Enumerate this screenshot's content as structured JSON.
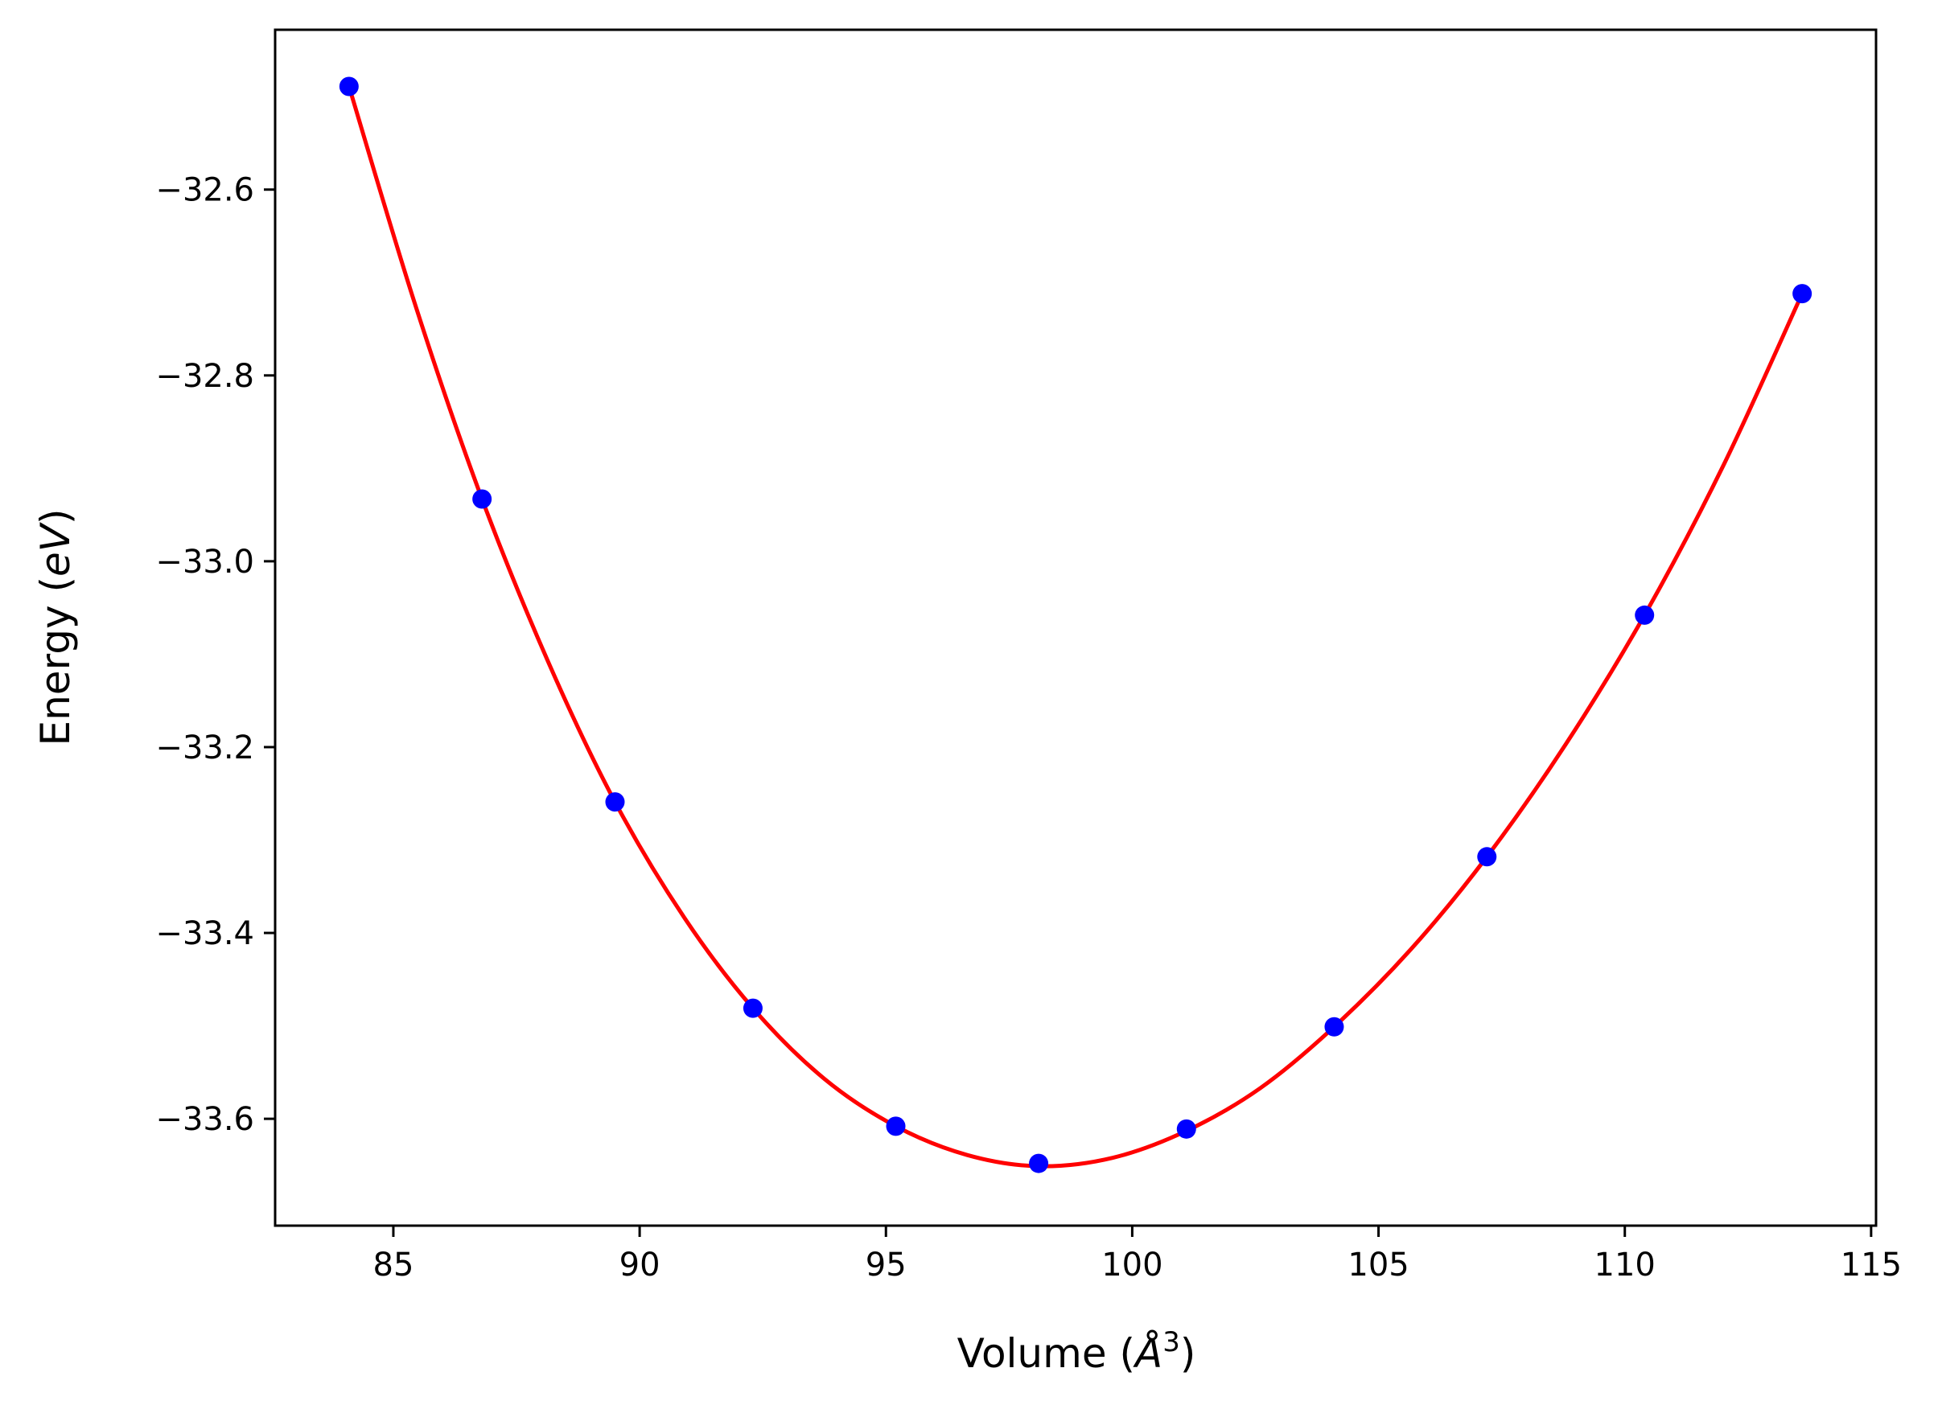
{
  "chart_data": {
    "type": "scatter",
    "title": "",
    "xlabel": {
      "prefix": "Volume (",
      "symbol": "Å",
      "superscript": "3",
      "suffix": ")"
    },
    "ylabel": {
      "prefix": "Energy (",
      "unit": "eV",
      "suffix": ")"
    },
    "xlim": [
      82.6,
      115.1
    ],
    "ylim": [
      -33.715,
      -32.428
    ],
    "xticks": [
      85,
      90,
      95,
      100,
      105,
      110,
      115
    ],
    "xtick_labels": [
      "85",
      "90",
      "95",
      "100",
      "105",
      "110",
      "115"
    ],
    "yticks": [
      -32.6,
      -32.8,
      -33.0,
      -33.2,
      -33.4,
      -33.6
    ],
    "ytick_labels": [
      "−32.6",
      "−32.8",
      "−33.0",
      "−33.2",
      "−33.4",
      "−33.6"
    ],
    "grid": false,
    "series": [
      {
        "kind": "points",
        "color": "#0000ff",
        "x": [
          84.1,
          86.8,
          89.5,
          92.3,
          95.2,
          98.1,
          101.1,
          104.1,
          107.2,
          110.4,
          113.6
        ],
        "y": [
          -32.489,
          -32.933,
          -33.259,
          -33.481,
          -33.608,
          -33.648,
          -33.611,
          -33.501,
          -33.318,
          -33.058,
          -32.712
        ]
      },
      {
        "kind": "fit-curve",
        "color": "#ff0000",
        "x": [
          84.1,
          85.45,
          86.8,
          88.15,
          89.5,
          90.9,
          92.3,
          93.75,
          95.2,
          96.65,
          98.1,
          99.6,
          101.1,
          102.6,
          104.1,
          105.65,
          107.2,
          108.8,
          110.4,
          112.0,
          113.6
        ],
        "y": [
          -32.489,
          -32.725,
          -32.933,
          -33.109,
          -33.259,
          -33.383,
          -33.481,
          -33.557,
          -33.608,
          -33.639,
          -33.651,
          -33.642,
          -33.613,
          -33.567,
          -33.501,
          -33.418,
          -33.318,
          -33.197,
          -33.058,
          -32.897,
          -32.712
        ]
      }
    ]
  }
}
